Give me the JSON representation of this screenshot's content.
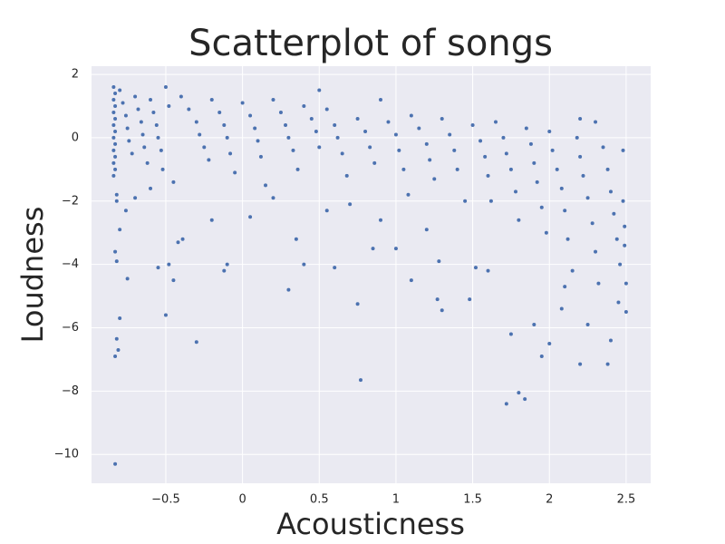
{
  "chart_data": {
    "type": "scatter",
    "title": "Scatterplot of songs",
    "x_label": "Acousticness",
    "y_label": "Loudness",
    "color": "#4c72b0",
    "grid": true,
    "xlim": [
      -0.984,
      2.66
    ],
    "ylim": [
      -10.91,
      2.26
    ],
    "xticks": [
      {
        "value": -0.5,
        "label": "−0.5"
      },
      0.0,
      0.5,
      1.0,
      1.5,
      2.0,
      2.5
    ],
    "yticks": [
      {
        "value": -10,
        "label": "−10"
      },
      {
        "value": -8,
        "label": "−8"
      },
      {
        "value": -6,
        "label": "−6"
      },
      {
        "value": -4,
        "label": "−4"
      },
      {
        "value": -2,
        "label": "−2"
      },
      0,
      2
    ],
    "x": [
      -0.84,
      -0.84,
      -0.84,
      -0.84,
      -0.84,
      -0.84,
      -0.84,
      -0.84,
      -0.83,
      -0.83,
      -0.83,
      -0.83,
      -0.83,
      -0.83,
      -0.83,
      -0.82,
      -0.82,
      -0.83,
      -0.8,
      -0.82,
      -0.8,
      -0.78,
      -0.76,
      -0.75,
      -0.74,
      -0.72,
      -0.7,
      -0.68,
      -0.66,
      -0.65,
      -0.64,
      -0.62,
      -0.6,
      -0.58,
      -0.56,
      -0.55,
      -0.53,
      -0.52,
      -0.5,
      -0.48,
      -0.76,
      -0.7,
      -0.55,
      -0.48,
      -0.45,
      -0.42,
      -0.39,
      -0.6,
      -0.45,
      -0.75,
      -0.4,
      -0.35,
      -0.3,
      -0.28,
      -0.25,
      -0.22,
      -0.2,
      -0.15,
      -0.12,
      -0.1,
      -0.08,
      -0.05,
      0,
      0.05,
      0.08,
      0.1,
      0.12,
      0.15,
      0.2,
      0.25,
      0.28,
      0.3,
      0.33,
      0.36,
      0.4,
      0.45,
      0.48,
      0.5,
      -0.1,
      -0.12,
      0.3,
      0.05,
      0.2,
      0.4,
      -0.2,
      0.35,
      0.5,
      0.55,
      0.6,
      0.62,
      0.65,
      0.68,
      0.7,
      0.75,
      0.8,
      0.83,
      0.86,
      0.9,
      0.95,
      1.0,
      1.02,
      1.05,
      1.08,
      1.1,
      1.15,
      1.2,
      1.22,
      1.25,
      1.3,
      1.35,
      1.38,
      1.4,
      1.45,
      1.5,
      0.6,
      0.85,
      1.0,
      1.1,
      1.27,
      1.28,
      1.48,
      1.52,
      0.9,
      1.2,
      0.55,
      1.55,
      1.58,
      1.6,
      1.62,
      1.65,
      1.7,
      1.72,
      1.75,
      1.78,
      1.8,
      1.85,
      1.88,
      1.9,
      1.92,
      1.95,
      1.98,
      2.0,
      2.02,
      2.05,
      2.08,
      2.1,
      2.12,
      2.15,
      2.18,
      2.2,
      2.22,
      2.25,
      2.28,
      2.3,
      2.32,
      2.35,
      2.38,
      2.4,
      2.42,
      2.44,
      2.46,
      2.48,
      2.49,
      2.49,
      2.5,
      2.5,
      2.48,
      2.2,
      2.3,
      1.75,
      1.9,
      2.08,
      2.25,
      2.4,
      2.45,
      1.6,
      1.95,
      2.1,
      -0.83,
      -0.83,
      -0.82,
      -0.81,
      -0.8,
      -0.3,
      0.77,
      1.72,
      1.8,
      1.84,
      2.0,
      2.2,
      2.38,
      -0.5,
      0.75,
      1.3
    ],
    "values": [
      1.6,
      1.2,
      0.8,
      0.4,
      0,
      -0.4,
      -0.8,
      -1.2,
      1.4,
      1.0,
      0.6,
      0.2,
      -0.2,
      -0.6,
      -1.0,
      -1.8,
      -2.0,
      -3.6,
      -2.9,
      -3.9,
      1.5,
      1.1,
      0.7,
      0.3,
      -0.1,
      -0.5,
      1.3,
      0.9,
      0.5,
      0.1,
      -0.3,
      -0.8,
      1.2,
      0.8,
      0.4,
      0,
      -0.4,
      -1.0,
      1.6,
      1.0,
      -2.3,
      -1.9,
      -4.1,
      -4.0,
      -4.5,
      -3.3,
      -3.2,
      -1.6,
      -1.4,
      -4.45,
      1.3,
      0.9,
      0.5,
      0.1,
      -0.3,
      -0.7,
      1.2,
      0.8,
      0.4,
      0,
      -0.5,
      -1.1,
      1.1,
      0.7,
      0.3,
      -0.1,
      -0.6,
      -1.5,
      1.2,
      0.8,
      0.4,
      0,
      -0.4,
      -1.0,
      1.0,
      0.6,
      0.2,
      -0.3,
      -4.0,
      -4.2,
      -4.8,
      -2.5,
      -1.9,
      -4.0,
      -2.6,
      -3.2,
      1.5,
      0.9,
      0.4,
      0,
      -0.5,
      -1.2,
      -2.1,
      0.6,
      0.2,
      -0.3,
      -0.8,
      1.2,
      0.5,
      0.1,
      -0.4,
      -1.0,
      -1.8,
      0.7,
      0.3,
      -0.2,
      -0.7,
      -1.3,
      0.6,
      0.1,
      -0.4,
      -1.0,
      -2.0,
      0.4,
      -4.1,
      -3.5,
      -3.5,
      -4.5,
      -5.1,
      -3.9,
      -5.1,
      -4.1,
      -2.6,
      -2.9,
      -2.3,
      -0.1,
      -0.6,
      -1.2,
      -2.0,
      0.5,
      0,
      -0.5,
      -1.0,
      -1.7,
      -2.6,
      0.3,
      -0.2,
      -0.8,
      -1.4,
      -2.2,
      -3.0,
      0.2,
      -0.4,
      -1.0,
      -1.6,
      -2.3,
      -3.2,
      -4.2,
      0,
      -0.6,
      -1.2,
      -1.9,
      -2.7,
      -3.6,
      -4.6,
      -0.3,
      -1.0,
      -1.7,
      -2.4,
      -3.2,
      -4.0,
      -2.0,
      -2.8,
      -3.4,
      -4.6,
      -5.5,
      -0.4,
      0.6,
      0.5,
      -6.2,
      -5.9,
      -5.4,
      -5.9,
      -6.4,
      -5.2,
      -4.2,
      -6.9,
      -4.7,
      -10.3,
      -6.9,
      -6.35,
      -6.7,
      -5.7,
      -6.45,
      -7.65,
      -8.4,
      -8.05,
      -8.25,
      -6.5,
      -7.15,
      -7.15,
      -5.6,
      -5.25,
      -5.45
    ]
  }
}
